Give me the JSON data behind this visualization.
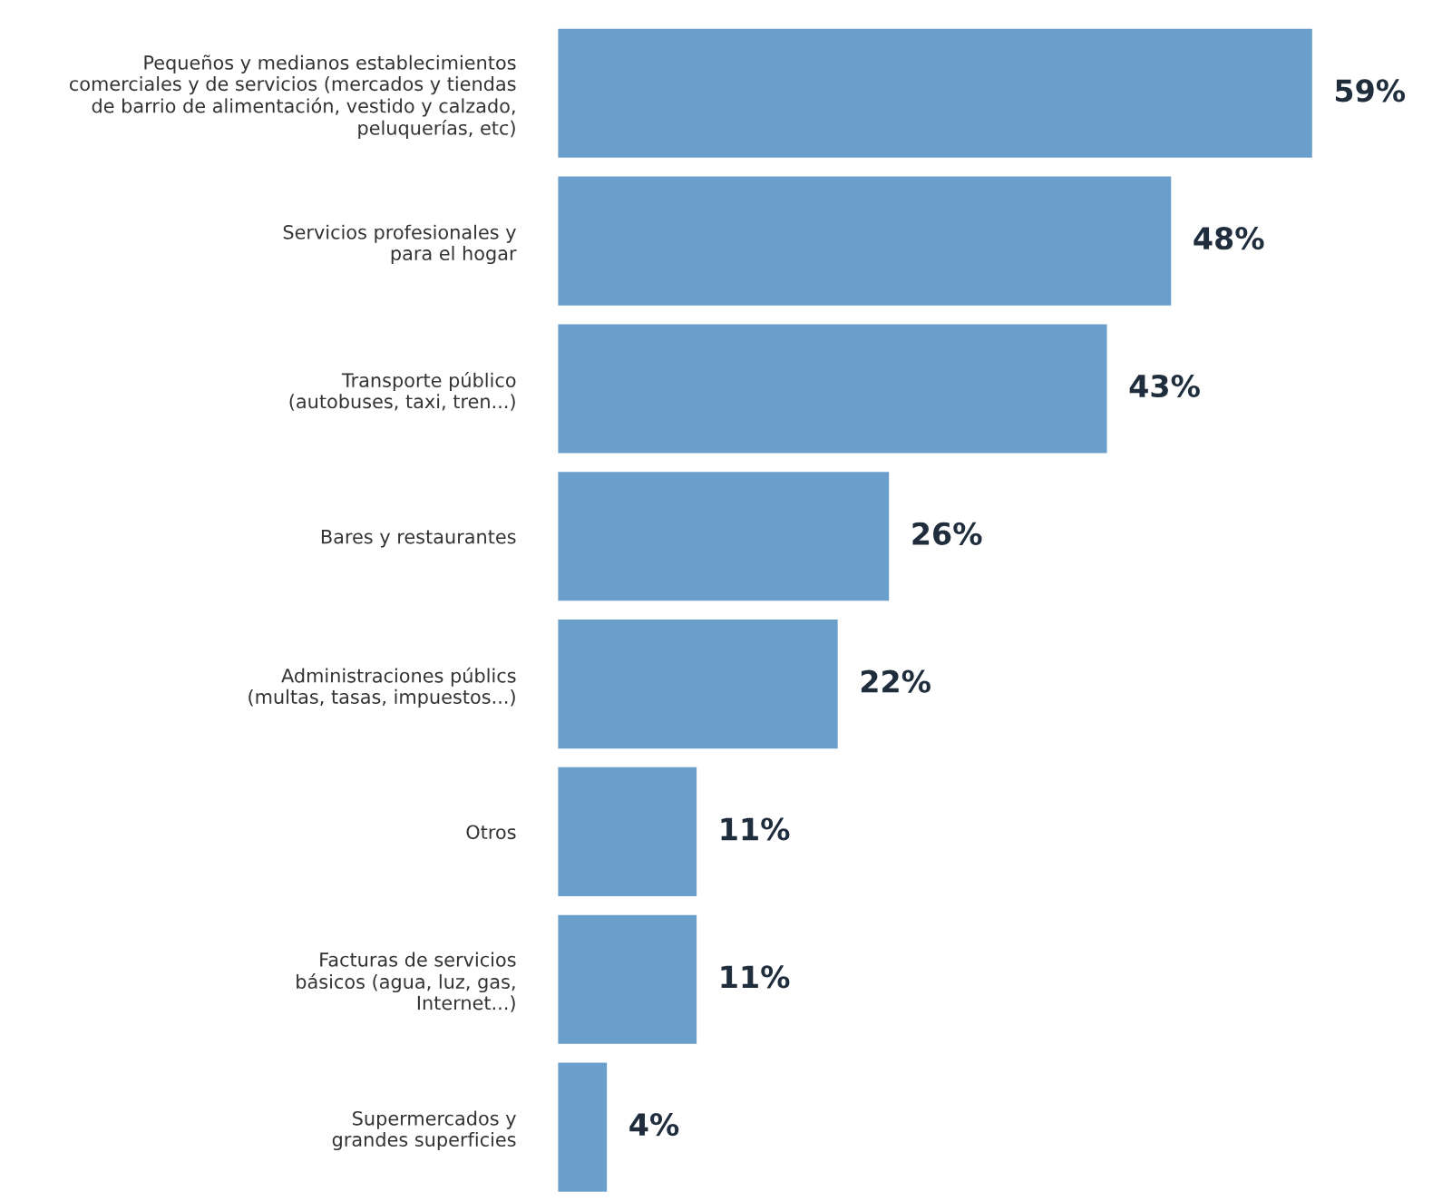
{
  "chart_data": {
    "type": "bar",
    "orientation": "horizontal",
    "tick_labels": "y",
    "legend": false,
    "categories": [
      "Pequeños y medianos establecimientos\ncomerciales y de servicios (mercados y tiendas\nde barrio de alimentación, vestido y calzado,\npeluquerías, etc)",
      "Servicios profesionales y\npara el hogar",
      "Transporte público\n(autobuses, taxi, tren...)",
      "Bares y restaurantes",
      "Administraciones públics\n(multas, tasas, impuestos...)",
      "Otros",
      "Facturas de servicios\nbásicos (agua, luz, gas,\nInternet...)",
      "Supermercados y\ngrandes superficies"
    ],
    "values": [
      59,
      48,
      43,
      26,
      22,
      11,
      11,
      4
    ],
    "value_labels": [
      "59%",
      "48%",
      "43%",
      "26%",
      "22%",
      "11%",
      "11%",
      "4%"
    ],
    "color": "#6a9fcc"
  }
}
